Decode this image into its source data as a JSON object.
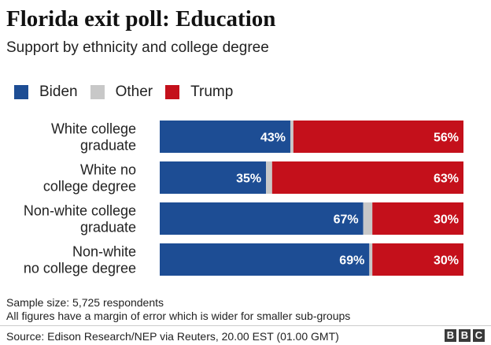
{
  "header": {
    "title": "Florida exit poll: Education",
    "subtitle": "Support by ethnicity and college degree"
  },
  "legend": [
    {
      "label": "Biden",
      "color": "#1d4d94"
    },
    {
      "label": "Other",
      "color": "#c8c8c8"
    },
    {
      "label": "Trump",
      "color": "#c4101b"
    }
  ],
  "chart_data": {
    "type": "bar",
    "orientation": "horizontal",
    "stacked": true,
    "categories": [
      [
        "White college",
        "graduate"
      ],
      [
        "White no",
        "college degree"
      ],
      [
        "Non-white college",
        "graduate"
      ],
      [
        "Non-white",
        "no college degree"
      ]
    ],
    "series": [
      {
        "name": "Biden",
        "color": "#1d4d94",
        "values": [
          43,
          35,
          67,
          69
        ],
        "labels": [
          "43%",
          "35%",
          "67%",
          "69%"
        ]
      },
      {
        "name": "Other",
        "color": "#c8c8c8",
        "values": [
          1,
          2,
          3,
          1
        ],
        "labels": [
          "",
          "",
          "",
          ""
        ]
      },
      {
        "name": "Trump",
        "color": "#c4101b",
        "values": [
          56,
          63,
          30,
          30
        ],
        "labels": [
          "56%",
          "63%",
          "30%",
          "30%"
        ]
      }
    ],
    "xlim": [
      0,
      100
    ],
    "grid": false,
    "legend_position": "top-left"
  },
  "notes": {
    "sample": "Sample size: 5,725 respondents",
    "margin": "All figures have a margin of error which is wider for smaller sub-groups"
  },
  "footer": {
    "source": "Source: Edison Research/NEP via Reuters, 20.00 EST (01.00 GMT)",
    "logo": [
      "B",
      "B",
      "C"
    ]
  }
}
